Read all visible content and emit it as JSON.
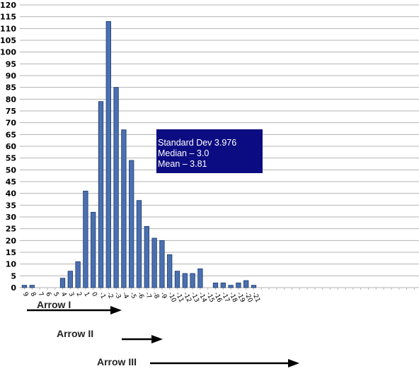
{
  "chart_data": {
    "type": "bar",
    "categories": [
      "9",
      "8",
      "7",
      "6",
      "5",
      "4",
      "3",
      "2",
      "1",
      "0",
      "-1",
      "-2",
      "-3",
      "-4",
      "-5",
      "-6",
      "-7",
      "-8",
      "-9",
      "-10",
      "-11",
      "-12",
      "-13",
      "-14",
      "-15",
      "-16",
      "-17",
      "-18",
      "-19",
      "-20",
      "-21"
    ],
    "values": [
      1,
      1,
      0,
      0,
      0,
      4,
      7,
      11,
      41,
      32,
      79,
      113,
      85,
      67,
      54,
      37,
      26,
      21,
      20,
      14,
      7,
      6,
      6,
      8,
      0,
      2,
      2,
      1,
      2,
      3,
      1
    ],
    "ylim": [
      0,
      120
    ],
    "yticks": [
      0,
      5,
      10,
      15,
      20,
      25,
      30,
      35,
      40,
      45,
      50,
      55,
      60,
      65,
      70,
      75,
      80,
      85,
      90,
      95,
      100,
      105,
      110,
      115,
      120
    ],
    "grid": true,
    "bar_color": "#4a70b0"
  },
  "stats": {
    "lines": [
      "Standard Dev 3.976",
      "Median – 3.0",
      "Mean – 3.81"
    ],
    "background": "#0c0c82"
  },
  "arrows": [
    {
      "label": "Arrow I"
    },
    {
      "label": "Arrow II"
    },
    {
      "label": "Arrow III"
    }
  ]
}
